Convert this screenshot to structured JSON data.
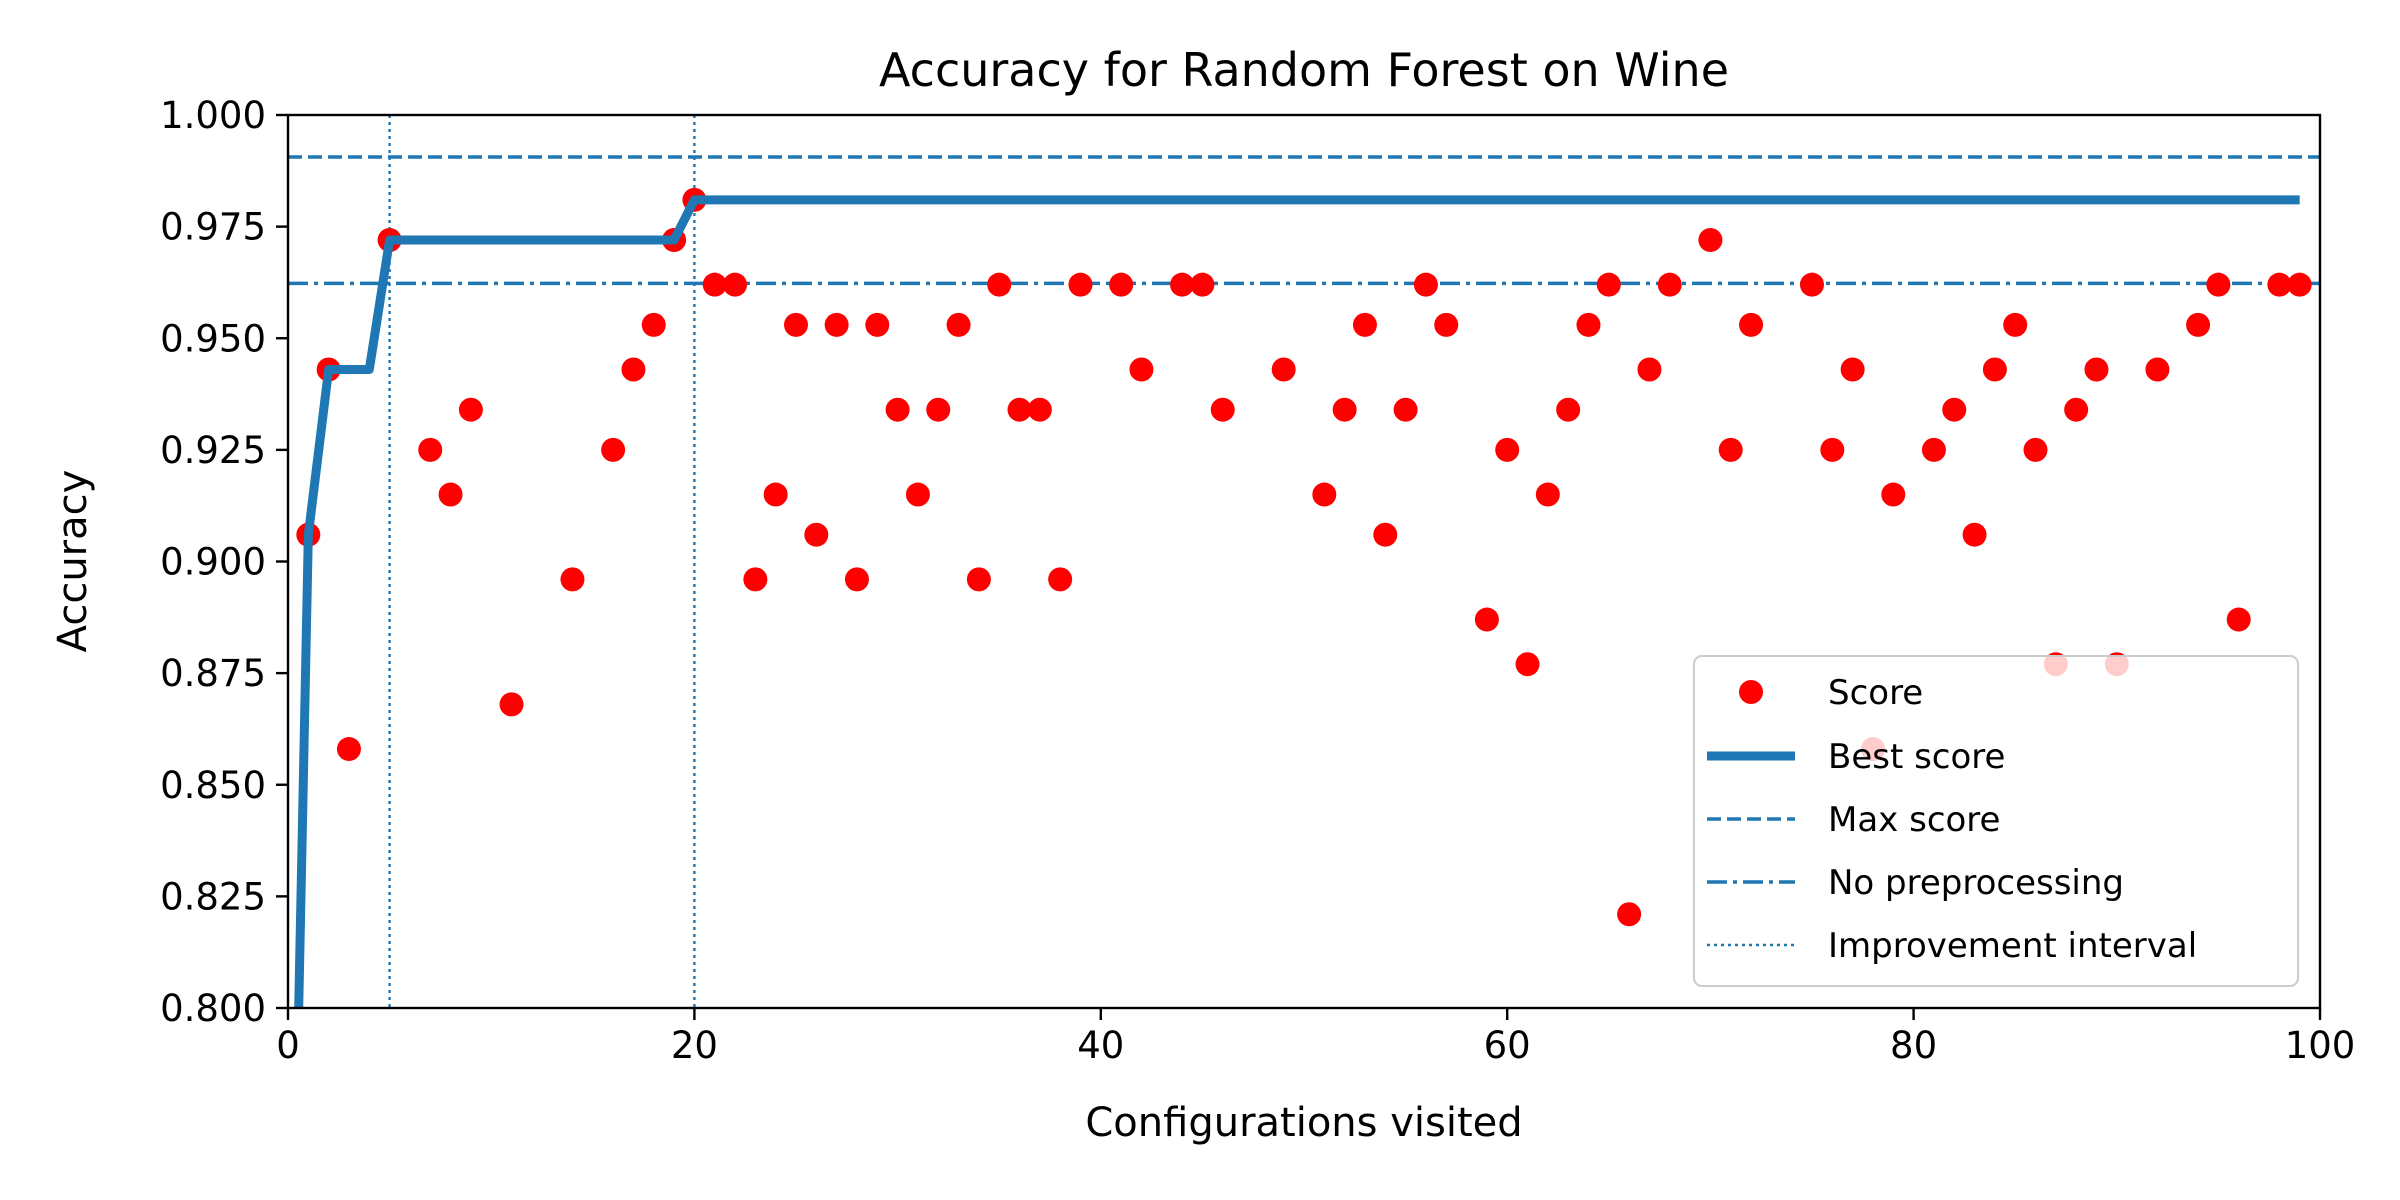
{
  "chart_data": {
    "type": "scatter",
    "title": "Accuracy for Random Forest on Wine",
    "xlabel": "Configurations visited",
    "ylabel": "Accuracy",
    "xlim": [
      0,
      100
    ],
    "ylim": [
      0.8,
      1.0
    ],
    "xticks": [
      0,
      20,
      40,
      60,
      80,
      100
    ],
    "xtick_labels": [
      "0",
      "20",
      "40",
      "60",
      "80",
      "100"
    ],
    "yticks": [
      0.8,
      0.825,
      0.85,
      0.875,
      0.9,
      0.925,
      0.95,
      0.975,
      1.0
    ],
    "ytick_labels": [
      "0.800",
      "0.825",
      "0.850",
      "0.875",
      "0.900",
      "0.925",
      "0.950",
      "0.975",
      "1.000"
    ],
    "grid": false,
    "legend_position": "lower-right",
    "colors": {
      "score": "#ff0000",
      "lines": "#1f77b4"
    },
    "series": [
      {
        "name": "Score",
        "kind": "scatter",
        "x": [
          0,
          1,
          2,
          3,
          5,
          7,
          8,
          9,
          11,
          14,
          16,
          17,
          18,
          19,
          20,
          21,
          22,
          23,
          24,
          25,
          26,
          27,
          28,
          29,
          30,
          31,
          32,
          33,
          34,
          35,
          36,
          37,
          38,
          39,
          41,
          42,
          44,
          45,
          46,
          49,
          51,
          52,
          53,
          54,
          55,
          56,
          57,
          59,
          60,
          61,
          62,
          63,
          64,
          65,
          66,
          67,
          68,
          70,
          71,
          72,
          75,
          76,
          77,
          78,
          79,
          81,
          82,
          83,
          84,
          85,
          86,
          87,
          88,
          89,
          90,
          92,
          94,
          95,
          96,
          98,
          99
        ],
        "y": [
          0.794,
          0.906,
          0.943,
          0.858,
          0.972,
          0.925,
          0.915,
          0.934,
          0.868,
          0.896,
          0.925,
          0.943,
          0.953,
          0.972,
          0.981,
          0.962,
          0.962,
          0.896,
          0.915,
          0.953,
          0.906,
          0.953,
          0.896,
          0.953,
          0.934,
          0.915,
          0.934,
          0.953,
          0.896,
          0.962,
          0.934,
          0.934,
          0.896,
          0.962,
          0.962,
          0.943,
          0.962,
          0.962,
          0.934,
          0.943,
          0.915,
          0.934,
          0.953,
          0.906,
          0.934,
          0.962,
          0.953,
          0.887,
          0.925,
          0.877,
          0.915,
          0.934,
          0.953,
          0.962,
          0.821,
          0.943,
          0.962,
          0.972,
          0.925,
          0.953,
          0.962,
          0.925,
          0.943,
          0.858,
          0.915,
          0.925,
          0.934,
          0.906,
          0.943,
          0.953,
          0.925,
          0.877,
          0.934,
          0.943,
          0.877,
          0.943,
          0.953,
          0.962,
          0.887,
          0.962,
          0.962
        ]
      },
      {
        "name": "Best score",
        "kind": "line",
        "x": [
          0.5,
          1,
          2,
          4,
          5,
          19,
          20,
          99
        ],
        "y": [
          0.794,
          0.906,
          0.943,
          0.943,
          0.972,
          0.972,
          0.981,
          0.981
        ]
      },
      {
        "name": "Max score",
        "kind": "hline",
        "y": 0.9906
      },
      {
        "name": "No preprocessing",
        "kind": "hline",
        "y": 0.9623
      },
      {
        "name": "Improvement interval",
        "kind": "vline",
        "x": [
          5,
          20
        ]
      }
    ]
  }
}
